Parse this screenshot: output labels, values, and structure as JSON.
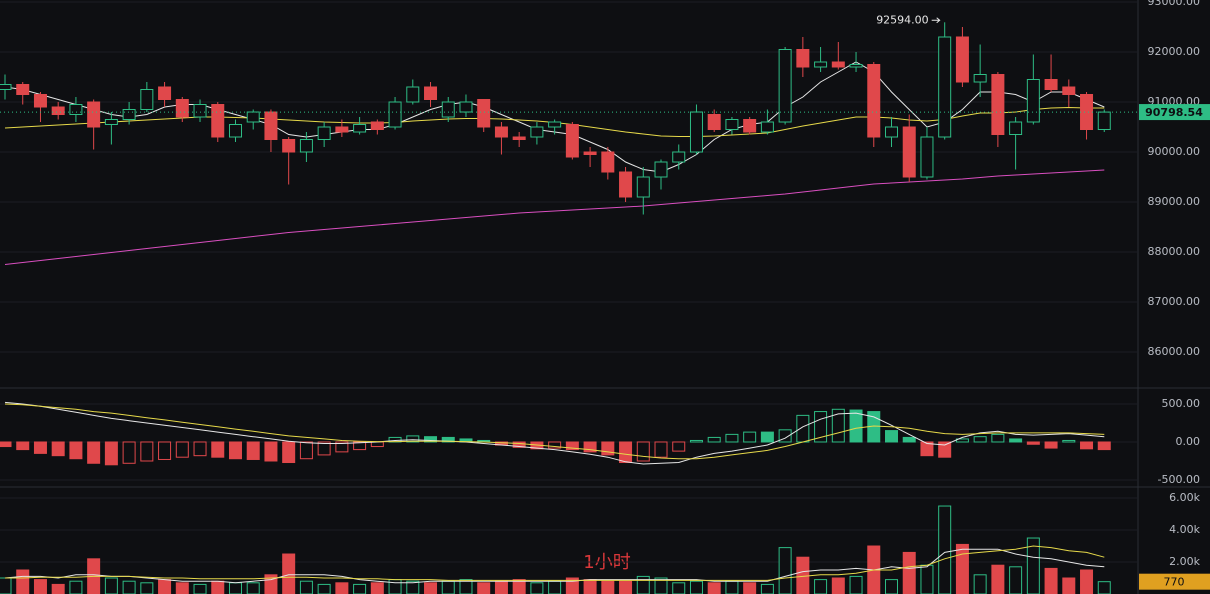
{
  "chart_data": [
    {
      "type": "candlestick",
      "open": [
        91250,
        91350,
        91150,
        90900,
        90750,
        91000,
        90550,
        90650,
        90850,
        91300,
        91050,
        90700,
        90950,
        90300,
        90600,
        90800,
        90250,
        90000,
        90250,
        90500,
        90400,
        90600,
        90500,
        91000,
        91300,
        90700,
        90800,
        91050,
        90500,
        90300,
        90300,
        90500,
        90550,
        90000,
        90000,
        89600,
        89100,
        89500,
        89800,
        90000,
        90750,
        90450,
        90650,
        90400,
        90600,
        92050,
        91700,
        91800,
        91700,
        91750,
        90300,
        90500,
        89500,
        90300,
        92300,
        91400,
        91550,
        90350,
        90600,
        91450,
        91300,
        91150,
        90450
      ],
      "high": [
        91550,
        91400,
        91200,
        91000,
        91100,
        91050,
        90800,
        91000,
        91400,
        91400,
        91100,
        91050,
        91000,
        90650,
        90850,
        90850,
        90300,
        90400,
        90600,
        90650,
        90700,
        90650,
        91100,
        91450,
        91400,
        91100,
        91150,
        91050,
        90600,
        90400,
        90600,
        90650,
        90600,
        90100,
        90100,
        89700,
        89700,
        89850,
        90150,
        90950,
        90850,
        90700,
        90700,
        90850,
        92100,
        92300,
        92100,
        92200,
        92000,
        91800,
        90700,
        90750,
        90500,
        92594,
        92500,
        92150,
        91600,
        90700,
        91950,
        91950,
        91450,
        91200,
        90850
      ],
      "low": [
        91050,
        90950,
        90600,
        90650,
        90600,
        90050,
        90150,
        90550,
        90800,
        90900,
        90600,
        90600,
        90200,
        90200,
        90450,
        90000,
        89350,
        89800,
        90100,
        90300,
        90350,
        90350,
        90450,
        90950,
        90900,
        90600,
        90700,
        90400,
        89950,
        90100,
        90150,
        90350,
        89850,
        89700,
        89450,
        89000,
        88750,
        89250,
        89650,
        89950,
        90400,
        90350,
        90350,
        90350,
        90550,
        91500,
        91600,
        91650,
        91600,
        90100,
        90100,
        89400,
        89450,
        90250,
        91300,
        91100,
        90100,
        89650,
        90550,
        91200,
        90900,
        90250,
        90400
      ],
      "close": [
        91350,
        91150,
        90900,
        90750,
        90950,
        90500,
        90650,
        90850,
        91250,
        91050,
        90700,
        90950,
        90300,
        90550,
        90800,
        90250,
        90000,
        90250,
        90500,
        90400,
        90550,
        90450,
        91000,
        91300,
        91050,
        91000,
        91000,
        90500,
        90300,
        90250,
        90500,
        90600,
        89900,
        89950,
        89600,
        89100,
        89500,
        89800,
        90000,
        90800,
        90450,
        90650,
        90400,
        90600,
        92050,
        91700,
        91800,
        91700,
        91750,
        90300,
        90500,
        89500,
        90300,
        92300,
        91400,
        91550,
        90350,
        90600,
        91450,
        91250,
        91150,
        90450,
        90798.54
      ],
      "up_color": "#2ebd85",
      "down_color": "#e0484b",
      "series": [
        {
          "color": "#e6e6e6",
          "values": [
            91300,
            91250,
            91150,
            91050,
            90950,
            90850,
            90750,
            90700,
            90750,
            90900,
            90950,
            90950,
            90850,
            90750,
            90650,
            90550,
            90350,
            90300,
            90350,
            90400,
            90450,
            90450,
            90550,
            90700,
            90850,
            90950,
            91000,
            90900,
            90750,
            90600,
            90450,
            90400,
            90350,
            90200,
            90050,
            89800,
            89650,
            89600,
            89750,
            89950,
            90250,
            90450,
            90550,
            90600,
            90900,
            91100,
            91400,
            91600,
            91800,
            91600,
            91200,
            90850,
            90500,
            90600,
            90850,
            91200,
            91200,
            91150,
            91000,
            91200,
            91200,
            91050,
            90900
          ]
        },
        {
          "color": "#e6d94a",
          "values": [
            90480,
            90500,
            90520,
            90540,
            90560,
            90580,
            90600,
            90620,
            90640,
            90660,
            90680,
            90700,
            90700,
            90690,
            90680,
            90660,
            90640,
            90620,
            90600,
            90590,
            90580,
            90580,
            90590,
            90620,
            90640,
            90660,
            90670,
            90670,
            90660,
            90640,
            90620,
            90590,
            90550,
            90500,
            90450,
            90400,
            90360,
            90320,
            90310,
            90310,
            90320,
            90340,
            90360,
            90380,
            90450,
            90520,
            90580,
            90640,
            90700,
            90700,
            90680,
            90640,
            90620,
            90650,
            90720,
            90780,
            90780,
            90800,
            90850,
            90880,
            90890,
            90880,
            90880
          ]
        },
        {
          "color": "#d94fc0",
          "values": [
            87750,
            87790,
            87830,
            87870,
            87910,
            87950,
            87990,
            88030,
            88070,
            88110,
            88150,
            88190,
            88230,
            88270,
            88310,
            88350,
            88390,
            88420,
            88450,
            88480,
            88510,
            88540,
            88570,
            88600,
            88630,
            88660,
            88690,
            88720,
            88750,
            88780,
            88800,
            88820,
            88840,
            88860,
            88880,
            88900,
            88920,
            88950,
            88980,
            89010,
            89040,
            89070,
            89100,
            89130,
            89160,
            89200,
            89240,
            89280,
            89320,
            89360,
            89380,
            89400,
            89420,
            89440,
            89460,
            89490,
            89520,
            89540,
            89560,
            89580,
            89600,
            89620,
            89640
          ]
        }
      ],
      "ylim": [
        85280,
        93040
      ],
      "yticks": [
        {
          "value": 93000,
          "label": "93000.00"
        },
        {
          "value": 92000,
          "label": "92000.00"
        },
        {
          "value": 91000,
          "label": "91000.00"
        },
        {
          "value": 90000,
          "label": "90000.00"
        },
        {
          "value": 89000,
          "label": "89000.00"
        },
        {
          "value": 88000,
          "label": "88000.00"
        },
        {
          "value": 87000,
          "label": "87000.00"
        },
        {
          "value": 86000,
          "label": "86000.00"
        }
      ],
      "last_price": 90798.54,
      "high_marker": {
        "value": 92594,
        "label": "92594.00"
      },
      "watermark": "1小时"
    },
    {
      "type": "macd",
      "values": [
        -60,
        -100,
        -150,
        -180,
        -220,
        -280,
        -300,
        -280,
        -250,
        -230,
        -200,
        -180,
        -200,
        -220,
        -230,
        -250,
        -270,
        -220,
        -170,
        -130,
        -100,
        -60,
        60,
        80,
        70,
        60,
        40,
        20,
        -40,
        -70,
        -90,
        -80,
        -100,
        -130,
        -170,
        -270,
        -250,
        -200,
        -120,
        20,
        60,
        100,
        130,
        130,
        160,
        350,
        400,
        430,
        420,
        400,
        150,
        60,
        -180,
        -200,
        40,
        70,
        100,
        40,
        -30,
        -80,
        20,
        -90,
        -100
      ],
      "series": [
        {
          "color": "#e6e6e6",
          "values": [
            520,
            500,
            470,
            430,
            390,
            350,
            310,
            280,
            250,
            220,
            190,
            160,
            130,
            100,
            70,
            40,
            10,
            -10,
            -20,
            -20,
            -10,
            0,
            20,
            30,
            20,
            10,
            0,
            -20,
            -40,
            -60,
            -80,
            -100,
            -130,
            -160,
            -200,
            -260,
            -290,
            -280,
            -270,
            -200,
            -150,
            -120,
            -80,
            -40,
            50,
            200,
            300,
            370,
            380,
            330,
            220,
            100,
            -20,
            -40,
            60,
            120,
            140,
            100,
            90,
            100,
            110,
            90,
            70
          ]
        },
        {
          "color": "#e6d94a",
          "values": [
            500,
            490,
            470,
            450,
            430,
            400,
            380,
            350,
            320,
            290,
            260,
            230,
            200,
            170,
            140,
            110,
            80,
            60,
            40,
            20,
            10,
            5,
            5,
            10,
            10,
            10,
            5,
            0,
            -10,
            -20,
            -40,
            -60,
            -80,
            -100,
            -130,
            -160,
            -190,
            -210,
            -220,
            -220,
            -200,
            -170,
            -140,
            -110,
            -60,
            0,
            60,
            120,
            180,
            210,
            200,
            180,
            140,
            110,
            100,
            110,
            120,
            120,
            120,
            120,
            120,
            110,
            100
          ]
        }
      ],
      "ylim": [
        -592,
        710
      ],
      "yticks": [
        {
          "value": 500,
          "label": "500.00"
        },
        {
          "value": 0,
          "label": "0.00"
        },
        {
          "value": -500,
          "label": "-500.00"
        }
      ]
    },
    {
      "type": "volume",
      "values": [
        1000,
        1500,
        900,
        600,
        800,
        2200,
        1000,
        800,
        700,
        900,
        700,
        600,
        800,
        700,
        700,
        1200,
        2500,
        800,
        600,
        700,
        600,
        700,
        900,
        800,
        700,
        800,
        900,
        700,
        800,
        900,
        700,
        800,
        1000,
        900,
        800,
        800,
        1100,
        1000,
        700,
        800,
        700,
        800,
        700,
        600,
        2900,
        2300,
        900,
        1000,
        1100,
        3000,
        900,
        2600,
        1800,
        5500,
        3100,
        1200,
        1800,
        1700,
        3500,
        1600,
        1000,
        1500,
        770
      ],
      "series": [
        {
          "color": "#e6e6e6",
          "values": [
            1000,
            1100,
            1100,
            1000,
            1200,
            1200,
            1100,
            1100,
            1000,
            900,
            800,
            800,
            800,
            700,
            800,
            900,
            1200,
            1200,
            1200,
            1100,
            900,
            800,
            700,
            700,
            800,
            800,
            800,
            800,
            800,
            800,
            800,
            800,
            800,
            900,
            900,
            900,
            900,
            900,
            900,
            900,
            800,
            800,
            800,
            800,
            1100,
            1400,
            1500,
            1500,
            1600,
            1500,
            1700,
            1600,
            1700,
            2600,
            2800,
            2800,
            2800,
            2500,
            2300,
            2200,
            2000,
            1800,
            1700
          ]
        },
        {
          "color": "#e6d94a",
          "values": [
            1000,
            1000,
            1050,
            1050,
            1050,
            1100,
            1100,
            1100,
            1050,
            1000,
            1000,
            950,
            950,
            950,
            950,
            1000,
            1050,
            1050,
            1000,
            1000,
            950,
            950,
            900,
            900,
            900,
            850,
            850,
            850,
            850,
            850,
            850,
            850,
            850,
            850,
            850,
            850,
            850,
            850,
            850,
            850,
            850,
            850,
            850,
            850,
            1000,
            1100,
            1200,
            1200,
            1300,
            1500,
            1500,
            1700,
            1800,
            2200,
            2500,
            2600,
            2700,
            2800,
            3000,
            2900,
            2700,
            2600,
            2300
          ]
        }
      ],
      "badge_color": "#e0a020",
      "ylim": [
        0,
        6690
      ],
      "yticks": [
        {
          "value": 6000,
          "label": "6.00k"
        },
        {
          "value": 4000,
          "label": "4.00k"
        },
        {
          "value": 2000,
          "label": "2.00k"
        }
      ]
    }
  ]
}
